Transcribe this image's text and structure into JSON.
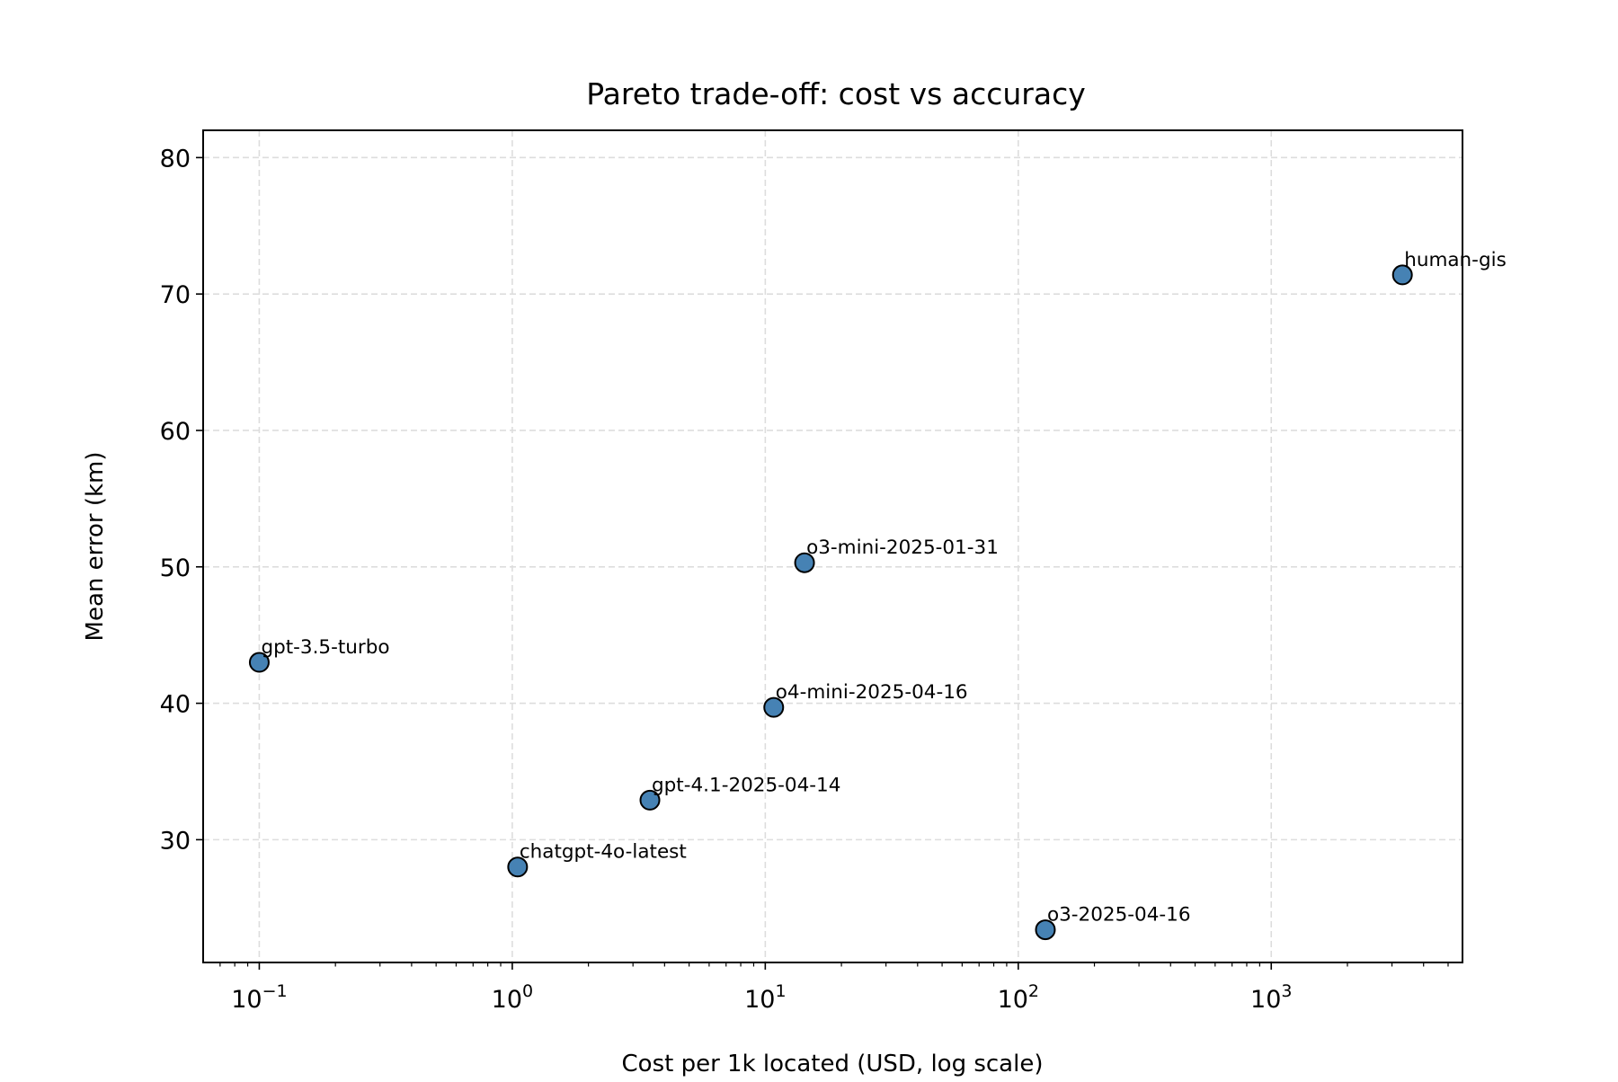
{
  "chart_data": {
    "type": "scatter",
    "title": "Pareto trade-off: cost vs accuracy",
    "xlabel": "Cost per 1k located (USD, log scale)",
    "ylabel": "Mean error (km)",
    "xscale": "log",
    "xlim": [
      0.06,
      5700
    ],
    "ylim": [
      21,
      82
    ],
    "grid": true,
    "grid_style": "dashed",
    "marker_color": "#4682b4",
    "marker_edge_color": "#000000",
    "x_ticks": [
      {
        "value": 0.1,
        "base": "10",
        "exp": "−1"
      },
      {
        "value": 1,
        "base": "10",
        "exp": "0"
      },
      {
        "value": 10,
        "base": "10",
        "exp": "1"
      },
      {
        "value": 100,
        "base": "10",
        "exp": "2"
      },
      {
        "value": 1000,
        "base": "10",
        "exp": "3"
      }
    ],
    "y_ticks": [
      30,
      40,
      50,
      60,
      70,
      80
    ],
    "points": [
      {
        "label": "gpt-3.5-turbo",
        "x": 0.1,
        "y": 43.0
      },
      {
        "label": "chatgpt-4o-latest",
        "x": 1.05,
        "y": 28.0
      },
      {
        "label": "gpt-4.1-2025-04-14",
        "x": 3.5,
        "y": 32.9
      },
      {
        "label": "o4-mini-2025-04-16",
        "x": 10.8,
        "y": 39.7
      },
      {
        "label": "o3-mini-2025-01-31",
        "x": 14.3,
        "y": 50.3
      },
      {
        "label": "o3-2025-04-16",
        "x": 128,
        "y": 23.4
      },
      {
        "label": "human-gis",
        "x": 3300,
        "y": 71.4
      }
    ]
  }
}
